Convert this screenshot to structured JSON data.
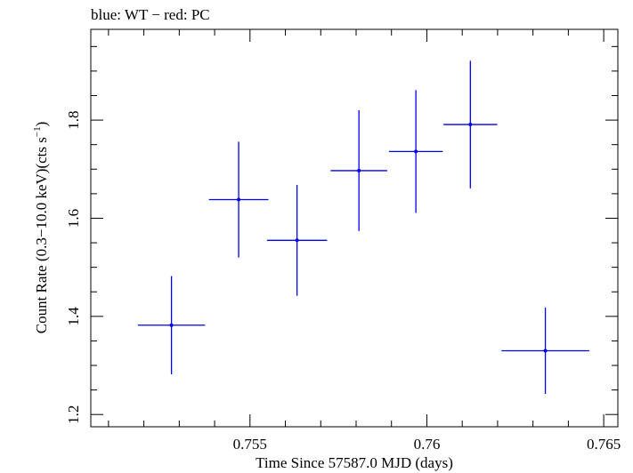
{
  "chart_data": {
    "type": "scatter",
    "title": "blue: WT − red: PC",
    "xlabel": "Time Since 57587.0 MJD (days)",
    "ylabel": "Count Rate (0.3−10.0 keV)(cts s",
    "ylabel_sup": "−1",
    "ylabel_end": ")",
    "xlim": [
      0.7505,
      0.7654
    ],
    "ylim": [
      1.175,
      1.985
    ],
    "x_ticks": [
      0.755,
      0.76,
      0.765
    ],
    "x_tick_labels": [
      "0.755",
      "0.76",
      "0.765"
    ],
    "y_ticks": [
      1.2,
      1.4,
      1.6,
      1.8
    ],
    "y_tick_labels": [
      "1.2",
      "1.4",
      "1.6",
      "1.8"
    ],
    "grid": false,
    "series": [
      {
        "color": "#0000ee",
        "points": [
          {
            "x": 0.75278,
            "xerr": 0.00095,
            "y": 1.382,
            "yerr_low": 0.1,
            "yerr_high": 0.1
          },
          {
            "x": 0.75468,
            "xerr": 0.00084,
            "y": 1.638,
            "yerr_low": 0.118,
            "yerr_high": 0.118
          },
          {
            "x": 0.75633,
            "xerr": 0.00085,
            "y": 1.555,
            "yerr_low": 0.113,
            "yerr_high": 0.113
          },
          {
            "x": 0.75808,
            "xerr": 0.0008,
            "y": 1.697,
            "yerr_low": 0.123,
            "yerr_high": 0.123
          },
          {
            "x": 0.75969,
            "xerr": 0.00076,
            "y": 1.736,
            "yerr_low": 0.125,
            "yerr_high": 0.125
          },
          {
            "x": 0.76123,
            "xerr": 0.00076,
            "y": 1.791,
            "yerr_low": 0.13,
            "yerr_high": 0.13
          },
          {
            "x": 0.76335,
            "xerr": 0.00124,
            "y": 1.33,
            "yerr_low": 0.088,
            "yerr_high": 0.088
          }
        ]
      }
    ]
  }
}
